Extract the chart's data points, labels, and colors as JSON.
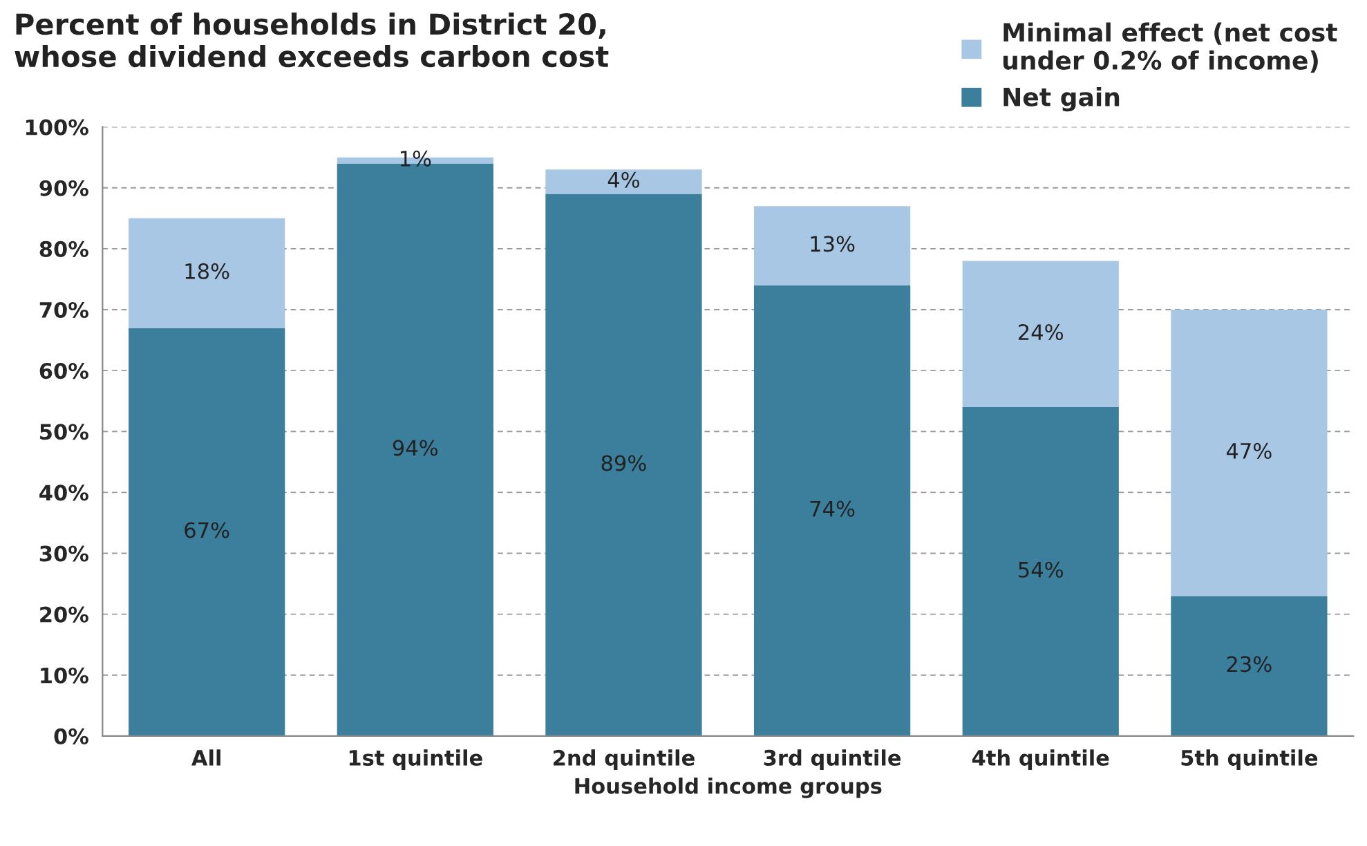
{
  "chart_data": {
    "type": "bar",
    "stacked": true,
    "title": "Percent of households in District 20,\nwhose dividend exceeds carbon cost",
    "xlabel": "Household income groups",
    "categories": [
      "All",
      "1st quintile",
      "2nd quintile",
      "3rd quintile",
      "4th quintile",
      "5th quintile"
    ],
    "series": [
      {
        "name": "Net gain",
        "color": "#3b7f9c",
        "values": [
          67,
          94,
          89,
          74,
          54,
          23
        ],
        "value_labels": [
          "67%",
          "94%",
          "89%",
          "74%",
          "54%",
          "23%"
        ]
      },
      {
        "name": "Minimal effect (net cost\nunder 0.2% of income)",
        "color": "#a8c7e4",
        "values": [
          18,
          1,
          4,
          13,
          24,
          47
        ],
        "value_labels": [
          "18%",
          "1%",
          "4%",
          "13%",
          "24%",
          "47%"
        ]
      }
    ],
    "ylim": [
      0,
      100
    ],
    "yticks": [
      {
        "value": 0,
        "label": "0%"
      },
      {
        "value": 10,
        "label": "10%"
      },
      {
        "value": 20,
        "label": "20%"
      },
      {
        "value": 30,
        "label": "30%"
      },
      {
        "value": 40,
        "label": "40%"
      },
      {
        "value": 50,
        "label": "50%"
      },
      {
        "value": 60,
        "label": "60%"
      },
      {
        "value": 70,
        "label": "70%"
      },
      {
        "value": 80,
        "label": "80%"
      },
      {
        "value": 90,
        "label": "90%"
      },
      {
        "value": 100,
        "label": "100%"
      }
    ],
    "grid": "y",
    "legend": "top right"
  }
}
